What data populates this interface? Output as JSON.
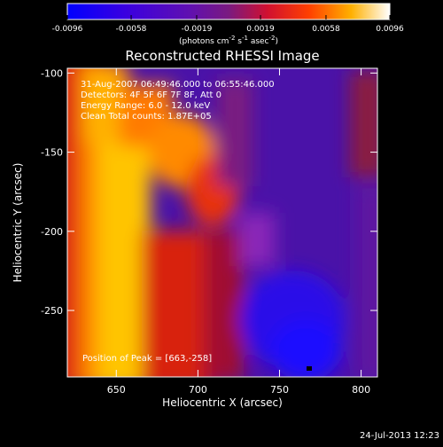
{
  "chart_data": {
    "type": "heatmap",
    "title": "Reconstructed RHESSI Image",
    "xlabel": "Heliocentric X (arcsec)",
    "ylabel": "Heliocentric Y (arcsec)",
    "xlim": [
      620,
      810
    ],
    "ylim": [
      -292,
      -97
    ],
    "x_ticks": [
      650,
      700,
      750,
      800
    ],
    "y_ticks": [
      -100,
      -150,
      -200,
      -250
    ],
    "colorbar": {
      "range": [
        -0.0096,
        0.0096
      ],
      "ticks": [
        -0.0096,
        -0.0058,
        -0.0019,
        0.0019,
        0.0058,
        0.0096
      ],
      "tick_labels": [
        "-0.0096",
        "-0.0058",
        "-0.0019",
        "0.0019",
        "0.0058",
        "0.0096"
      ],
      "unit_label": "(photons cm",
      "unit_exp1": "-2",
      "unit_mid": " s",
      "unit_exp2": "-1",
      "unit_mid2": " asec",
      "unit_exp3": "-2",
      "unit_end": ")"
    },
    "annotations": {
      "time_range": "31-Aug-2007 06:49:46.000 to 06:55:46.000",
      "detectors": "Detectors: 4F 5F 6F 7F 8F, Att 0",
      "energy": "Energy Range: 6.0 - 12.0 keV",
      "clean": "Clean     Total counts: 1.87E+05",
      "peak": "Position of Peak = [663,-258]"
    },
    "peak": [
      663,
      -258
    ],
    "footer_date": "24-Jul-2013 12:23"
  }
}
